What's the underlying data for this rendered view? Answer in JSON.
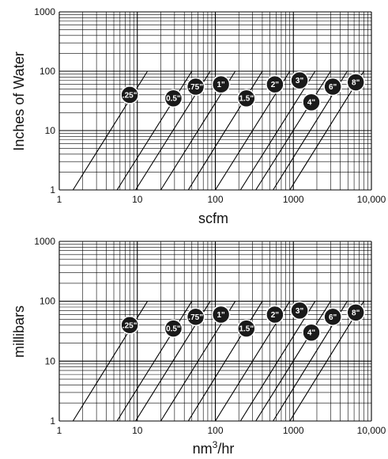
{
  "chart_data": [
    {
      "type": "line",
      "title": "",
      "xlabel": "scfm",
      "xlabel_sup": "",
      "xlabel_suffix": "",
      "ylabel": "Inches of Water",
      "xscale": "log",
      "yscale": "log",
      "xlim": [
        1,
        10000
      ],
      "ylim": [
        1,
        1000
      ],
      "grid": true,
      "x_tick_labels": [
        "1",
        "10",
        "100",
        "1000",
        "10,000"
      ],
      "y_tick_labels": [
        "1",
        "10",
        "100",
        "1000"
      ],
      "series": [
        {
          "name": ".25\"",
          "label_x": 8,
          "label_y": 40,
          "x": [
            1.5,
            13.5
          ],
          "y": [
            1,
            100
          ]
        },
        {
          "name": "0.5\"",
          "label_x": 29,
          "label_y": 35,
          "x": [
            5.5,
            50
          ],
          "y": [
            1,
            100
          ]
        },
        {
          "name": ".75\"",
          "label_x": 56,
          "label_y": 55,
          "x": [
            9.5,
            86
          ],
          "y": [
            1,
            100
          ]
        },
        {
          "name": "1\"",
          "label_x": 118,
          "label_y": 60,
          "x": [
            20,
            180
          ],
          "y": [
            1,
            100
          ]
        },
        {
          "name": "1.5\"",
          "label_x": 250,
          "label_y": 35,
          "x": [
            45,
            400
          ],
          "y": [
            1,
            100
          ]
        },
        {
          "name": "2\"",
          "label_x": 580,
          "label_y": 60,
          "x": [
            100,
            900
          ],
          "y": [
            1,
            100
          ]
        },
        {
          "name": "3\"",
          "label_x": 1200,
          "label_y": 70,
          "x": [
            210,
            1900
          ],
          "y": [
            1,
            100
          ]
        },
        {
          "name": "4\"",
          "label_x": 1700,
          "label_y": 30,
          "x": [
            330,
            3000
          ],
          "y": [
            1,
            100
          ]
        },
        {
          "name": "6\"",
          "label_x": 3200,
          "label_y": 55,
          "x": [
            550,
            4900
          ],
          "y": [
            1,
            100
          ]
        },
        {
          "name": "8\"",
          "label_x": 6300,
          "label_y": 65,
          "x": [
            900,
            8000
          ],
          "y": [
            1,
            100
          ]
        }
      ]
    },
    {
      "type": "line",
      "title": "",
      "xlabel": "nm",
      "xlabel_sup": "3",
      "xlabel_suffix": "/hr",
      "ylabel": "millibars",
      "xscale": "log",
      "yscale": "log",
      "xlim": [
        1,
        10000
      ],
      "ylim": [
        1,
        1000
      ],
      "grid": true,
      "x_tick_labels": [
        "1",
        "10",
        "100",
        "1000",
        "10,000"
      ],
      "y_tick_labels": [
        "1",
        "10",
        "100",
        "1000"
      ],
      "series": [
        {
          "name": ".25\"",
          "label_x": 8,
          "label_y": 40,
          "x": [
            1.5,
            13.5
          ],
          "y": [
            1,
            100
          ]
        },
        {
          "name": "0.5\"",
          "label_x": 29,
          "label_y": 35,
          "x": [
            5.5,
            50
          ],
          "y": [
            1,
            100
          ]
        },
        {
          "name": ".75\"",
          "label_x": 56,
          "label_y": 55,
          "x": [
            9.5,
            86
          ],
          "y": [
            1,
            100
          ]
        },
        {
          "name": "1\"",
          "label_x": 118,
          "label_y": 60,
          "x": [
            20,
            180
          ],
          "y": [
            1,
            100
          ]
        },
        {
          "name": "1.5\"",
          "label_x": 250,
          "label_y": 35,
          "x": [
            45,
            400
          ],
          "y": [
            1,
            100
          ]
        },
        {
          "name": "2\"",
          "label_x": 580,
          "label_y": 60,
          "x": [
            100,
            900
          ],
          "y": [
            1,
            100
          ]
        },
        {
          "name": "3\"",
          "label_x": 1200,
          "label_y": 70,
          "x": [
            210,
            1900
          ],
          "y": [
            1,
            100
          ]
        },
        {
          "name": "4\"",
          "label_x": 1700,
          "label_y": 30,
          "x": [
            330,
            3000
          ],
          "y": [
            1,
            100
          ]
        },
        {
          "name": "6\"",
          "label_x": 3200,
          "label_y": 55,
          "x": [
            550,
            4900
          ],
          "y": [
            1,
            100
          ]
        },
        {
          "name": "8\"",
          "label_x": 6300,
          "label_y": 65,
          "x": [
            900,
            8000
          ],
          "y": [
            1,
            100
          ]
        }
      ]
    }
  ]
}
